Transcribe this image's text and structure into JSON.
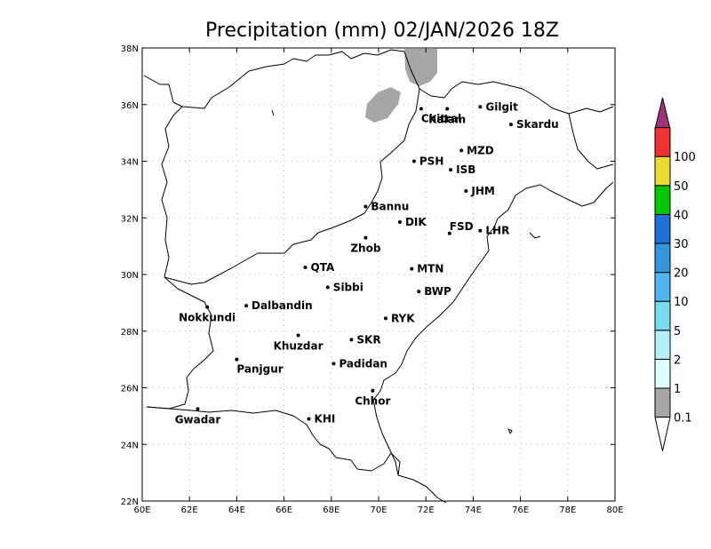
{
  "title": "Precipitation (mm) 02/JAN/2026 18Z",
  "map": {
    "lon_range": [
      60,
      80
    ],
    "lat_range": [
      22,
      38
    ],
    "x_ticks": [
      {
        "lon": 60,
        "label": "60E"
      },
      {
        "lon": 62,
        "label": "62E"
      },
      {
        "lon": 64,
        "label": "64E"
      },
      {
        "lon": 66,
        "label": "66E"
      },
      {
        "lon": 68,
        "label": "68E"
      },
      {
        "lon": 70,
        "label": "70E"
      },
      {
        "lon": 72,
        "label": "72E"
      },
      {
        "lon": 74,
        "label": "74E"
      },
      {
        "lon": 76,
        "label": "76E"
      },
      {
        "lon": 78,
        "label": "78E"
      },
      {
        "lon": 80,
        "label": "80E"
      }
    ],
    "y_ticks": [
      {
        "lat": 22,
        "label": "22N"
      },
      {
        "lat": 24,
        "label": "24N"
      },
      {
        "lat": 26,
        "label": "26N"
      },
      {
        "lat": 28,
        "label": "28N"
      },
      {
        "lat": 30,
        "label": "30N"
      },
      {
        "lat": 32,
        "label": "32N"
      },
      {
        "lat": 34,
        "label": "34N"
      },
      {
        "lat": 36,
        "label": "36N"
      },
      {
        "lat": 38,
        "label": "38N"
      }
    ],
    "grid": true,
    "cities": [
      {
        "name": "Chitral",
        "lon": 71.8,
        "lat": 35.85,
        "anchor": "se"
      },
      {
        "name": "Gilgit",
        "lon": 74.3,
        "lat": 35.92,
        "anchor": "e"
      },
      {
        "name": "Kalam",
        "lon": 72.9,
        "lat": 35.85,
        "anchor": "s"
      },
      {
        "name": "Skardu",
        "lon": 75.6,
        "lat": 35.3,
        "anchor": "e"
      },
      {
        "name": "MZD",
        "lon": 73.5,
        "lat": 34.38,
        "anchor": "e"
      },
      {
        "name": "PSH",
        "lon": 71.5,
        "lat": 34.0,
        "anchor": "e"
      },
      {
        "name": "ISB",
        "lon": 73.05,
        "lat": 33.7,
        "anchor": "e"
      },
      {
        "name": "JHM",
        "lon": 73.7,
        "lat": 32.95,
        "anchor": "e"
      },
      {
        "name": "Bannu",
        "lon": 69.45,
        "lat": 32.4,
        "anchor": "e"
      },
      {
        "name": "DIK",
        "lon": 70.9,
        "lat": 31.85,
        "anchor": "e"
      },
      {
        "name": "FSD",
        "lon": 73.0,
        "lat": 31.45,
        "anchor": "ne"
      },
      {
        "name": "LHR",
        "lon": 74.3,
        "lat": 31.55,
        "anchor": "e"
      },
      {
        "name": "Zhob",
        "lon": 69.45,
        "lat": 31.3,
        "anchor": "s"
      },
      {
        "name": "QTA",
        "lon": 66.9,
        "lat": 30.25,
        "anchor": "e"
      },
      {
        "name": "MTN",
        "lon": 71.4,
        "lat": 30.2,
        "anchor": "e"
      },
      {
        "name": "Sibbi",
        "lon": 67.85,
        "lat": 29.55,
        "anchor": "e"
      },
      {
        "name": "BWP",
        "lon": 71.7,
        "lat": 29.4,
        "anchor": "e"
      },
      {
        "name": "Nokkundi",
        "lon": 62.75,
        "lat": 28.85,
        "anchor": "sw"
      },
      {
        "name": "Dalbandin",
        "lon": 64.4,
        "lat": 28.9,
        "anchor": "e"
      },
      {
        "name": "RYK",
        "lon": 70.3,
        "lat": 28.45,
        "anchor": "e"
      },
      {
        "name": "Khuzdar",
        "lon": 66.6,
        "lat": 27.85,
        "anchor": "s"
      },
      {
        "name": "SKR",
        "lon": 68.85,
        "lat": 27.7,
        "anchor": "e"
      },
      {
        "name": "Panjgur",
        "lon": 64.0,
        "lat": 27.0,
        "anchor": "se"
      },
      {
        "name": "Padidan",
        "lon": 68.1,
        "lat": 26.85,
        "anchor": "e"
      },
      {
        "name": "Chhor",
        "lon": 69.75,
        "lat": 25.9,
        "anchor": "s"
      },
      {
        "name": "Gwadar",
        "lon": 62.35,
        "lat": 25.25,
        "anchor": "s"
      },
      {
        "name": "KHI",
        "lon": 67.05,
        "lat": 24.9,
        "anchor": "e"
      }
    ]
  },
  "legend": {
    "levels": [
      {
        "label": "0.1",
        "color": "#a6a6a6"
      },
      {
        "label": "1",
        "color": "#e0ffff"
      },
      {
        "label": "2",
        "color": "#b4f0fa"
      },
      {
        "label": "5",
        "color": "#78dcf0"
      },
      {
        "label": "10",
        "color": "#50b4f0"
      },
      {
        "label": "20",
        "color": "#3296dc"
      },
      {
        "label": "30",
        "color": "#1e6edc"
      },
      {
        "label": "40",
        "color": "#00c800"
      },
      {
        "label": "50",
        "color": "#e6dc32"
      },
      {
        "label": "100",
        "color": "#f03232"
      }
    ],
    "top_color": "#a0327a",
    "bottom_color": "#ffffff"
  },
  "precip_shading_color": "#a6a6a6"
}
